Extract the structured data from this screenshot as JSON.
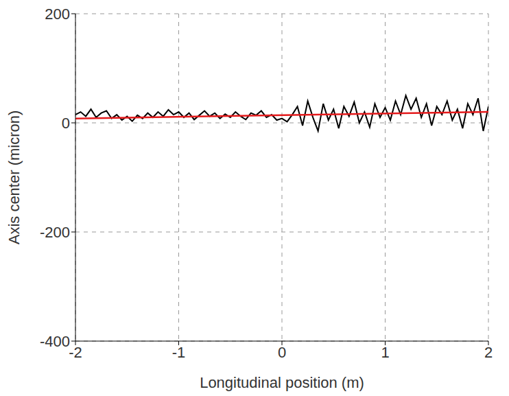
{
  "chart_data": {
    "type": "line",
    "xlabel": "Longitudinal position (m)",
    "ylabel": "Axis center (micron)",
    "xlim": [
      -2,
      2
    ],
    "xticks": [
      -2,
      -1,
      0,
      1,
      2
    ],
    "ylim": [
      -400,
      200
    ],
    "yticks": [
      -400,
      -200,
      0,
      200
    ],
    "grid": true,
    "series": [
      {
        "color": "#000000",
        "x": [
          -2,
          -1.95,
          -1.9,
          -1.85,
          -1.8,
          -1.75,
          -1.7,
          -1.65,
          -1.6,
          -1.55,
          -1.5,
          -1.45,
          -1.4,
          -1.35,
          -1.3,
          -1.25,
          -1.2,
          -1.15,
          -1.1,
          -1.05,
          -1,
          -0.95,
          -0.9,
          -0.85,
          -0.8,
          -0.75,
          -0.7,
          -0.65,
          -0.6,
          -0.55,
          -0.5,
          -0.45,
          -0.4,
          -0.35,
          -0.3,
          -0.25,
          -0.2,
          -0.15,
          -0.1,
          -0.05,
          0,
          0.05,
          0.1,
          0.15,
          0.2,
          0.25,
          0.3,
          0.35,
          0.4,
          0.45,
          0.5,
          0.55,
          0.6,
          0.65,
          0.7,
          0.75,
          0.8,
          0.85,
          0.9,
          0.95,
          1,
          1.05,
          1.1,
          1.15,
          1.2,
          1.25,
          1.3,
          1.35,
          1.4,
          1.45,
          1.5,
          1.55,
          1.6,
          1.65,
          1.7,
          1.75,
          1.8,
          1.85,
          1.9,
          1.95,
          2
        ],
        "values": [
          15,
          20,
          12,
          25,
          10,
          18,
          22,
          8,
          15,
          5,
          12,
          3,
          14,
          8,
          18,
          10,
          20,
          12,
          24,
          15,
          20,
          10,
          18,
          6,
          14,
          22,
          12,
          18,
          8,
          16,
          10,
          20,
          12,
          6,
          18,
          14,
          22,
          10,
          15,
          5,
          8,
          2,
          15,
          30,
          -5,
          40,
          10,
          -15,
          35,
          5,
          25,
          -10,
          30,
          12,
          38,
          0,
          20,
          -8,
          35,
          10,
          28,
          5,
          40,
          15,
          50,
          25,
          45,
          10,
          35,
          -5,
          30,
          15,
          40,
          5,
          25,
          -10,
          35,
          15,
          45,
          -15,
          30
        ]
      },
      {
        "color": "#e41a1c",
        "x": [
          -2,
          2
        ],
        "values": [
          8,
          20
        ]
      }
    ]
  }
}
